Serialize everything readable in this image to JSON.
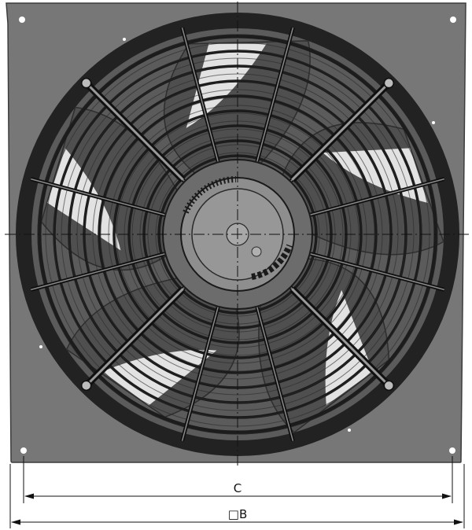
{
  "drawing": {
    "type": "axial fan with guard grille, front view",
    "colors": {
      "plate": "#777777",
      "plate_edge": "#3c3c3c",
      "ring": "#1c1c1c",
      "blade": "#4f4f4f",
      "blade_light": "#f2f2f2",
      "hub": "#8e8e8e",
      "dimension_line": "#111111"
    },
    "spokes": 12,
    "guard_rings": 9
  },
  "dimensions": {
    "inner": {
      "label": "C"
    },
    "outer": {
      "label": "□B"
    }
  }
}
